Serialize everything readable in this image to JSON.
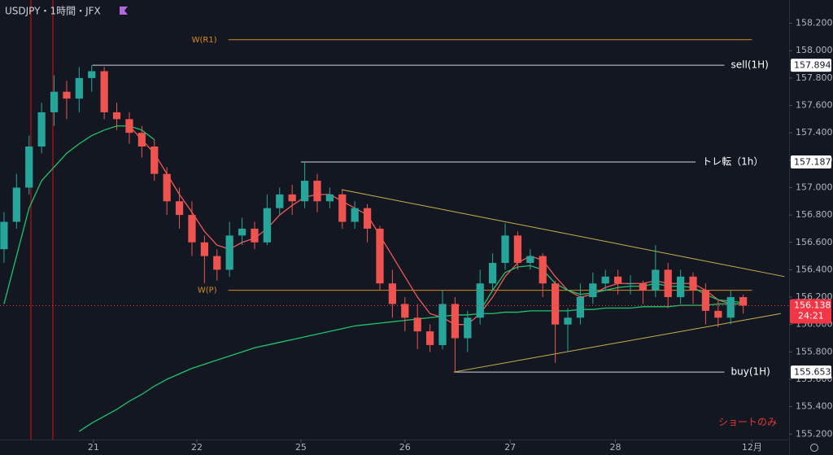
{
  "chart_data": {
    "type": "candlestick",
    "title": "USDJPY・1時間・JFX",
    "annotation": "ショートのみ",
    "x": [
      0,
      1,
      2,
      3,
      4,
      5,
      6,
      7,
      8,
      9,
      10,
      11,
      12,
      13,
      14,
      15,
      16,
      17,
      18,
      19,
      20,
      21,
      22,
      23,
      24,
      25,
      26,
      27,
      28,
      29,
      30,
      31,
      32,
      33,
      34,
      35,
      36,
      37,
      38,
      39,
      40,
      41,
      42,
      43,
      44,
      45,
      46,
      47,
      48,
      49,
      50,
      51,
      52,
      53,
      54,
      55,
      56,
      57,
      58,
      59
    ],
    "open": [
      156.55,
      156.75,
      157.0,
      157.3,
      157.55,
      157.7,
      157.65,
      157.8,
      157.85,
      157.55,
      157.5,
      157.4,
      157.3,
      157.1,
      156.9,
      156.8,
      156.6,
      156.5,
      156.4,
      156.65,
      156.7,
      156.6,
      156.85,
      156.95,
      156.9,
      157.05,
      156.9,
      156.95,
      156.75,
      156.85,
      156.7,
      156.3,
      156.15,
      156.05,
      155.95,
      155.85,
      156.15,
      155.9,
      156.05,
      156.3,
      156.45,
      156.65,
      156.45,
      156.5,
      156.3,
      156.0,
      156.05,
      156.2,
      156.3,
      156.35,
      156.3,
      156.3,
      156.25,
      156.4,
      156.2,
      156.35,
      156.25,
      156.1,
      156.05,
      156.2
    ],
    "high": [
      156.82,
      157.1,
      157.38,
      157.62,
      157.82,
      157.78,
      157.88,
      157.894,
      157.88,
      157.62,
      157.55,
      157.45,
      157.35,
      157.15,
      157.0,
      156.9,
      156.65,
      156.55,
      156.75,
      156.78,
      156.75,
      156.95,
      157.0,
      157.02,
      157.187,
      157.1,
      157.0,
      156.98,
      156.9,
      156.88,
      156.72,
      156.4,
      156.2,
      156.15,
      156.0,
      156.25,
      156.2,
      156.1,
      156.4,
      156.52,
      156.74,
      156.68,
      156.55,
      156.52,
      156.32,
      156.12,
      156.3,
      156.38,
      156.4,
      156.4,
      156.36,
      156.32,
      156.58,
      156.45,
      156.4,
      156.38,
      156.3,
      156.18,
      156.25,
      156.22
    ],
    "low": [
      156.45,
      156.7,
      156.95,
      157.25,
      157.45,
      157.5,
      157.55,
      157.7,
      157.5,
      157.42,
      157.32,
      157.22,
      157.05,
      156.8,
      156.7,
      156.5,
      156.3,
      156.32,
      156.35,
      156.58,
      156.55,
      156.58,
      156.8,
      156.8,
      156.85,
      156.82,
      156.85,
      156.7,
      156.7,
      156.6,
      156.25,
      156.05,
      155.95,
      155.82,
      155.8,
      155.82,
      155.653,
      155.8,
      156.0,
      156.25,
      156.4,
      156.4,
      156.4,
      156.2,
      155.72,
      155.8,
      156.0,
      156.15,
      156.25,
      156.22,
      156.22,
      156.15,
      156.2,
      156.12,
      156.15,
      156.15,
      156.0,
      155.98,
      156.0,
      156.08
    ],
    "close": [
      156.75,
      157.0,
      157.3,
      157.55,
      157.7,
      157.65,
      157.8,
      157.85,
      157.55,
      157.5,
      157.4,
      157.3,
      157.1,
      156.9,
      156.8,
      156.6,
      156.5,
      156.4,
      156.65,
      156.7,
      156.6,
      156.85,
      156.95,
      156.9,
      157.05,
      156.9,
      156.95,
      156.75,
      156.85,
      156.7,
      156.3,
      156.15,
      156.05,
      155.95,
      155.85,
      156.15,
      155.9,
      156.05,
      156.3,
      156.45,
      156.65,
      156.45,
      156.5,
      156.3,
      156.0,
      156.05,
      156.2,
      156.3,
      156.35,
      156.3,
      156.3,
      156.25,
      156.4,
      156.2,
      156.35,
      156.25,
      156.1,
      156.05,
      156.2,
      156.138
    ],
    "up_color": "#26a69a",
    "down_color": "#ef5350",
    "lines": [
      {
        "color": "#f05a5a",
        "values": [
          null,
          null,
          null,
          null,
          null,
          null,
          null,
          null,
          null,
          null,
          157.45,
          157.35,
          157.25,
          157.1,
          156.95,
          156.82,
          156.68,
          156.58,
          156.55,
          156.6,
          156.63,
          156.7,
          156.8,
          156.87,
          156.93,
          156.95,
          156.95,
          156.9,
          156.85,
          156.8,
          156.65,
          156.5,
          156.35,
          156.2,
          156.08,
          156.05,
          156.0,
          156.0,
          156.08,
          156.2,
          156.35,
          156.45,
          156.5,
          156.47,
          156.35,
          156.25,
          156.2,
          156.22,
          156.27,
          156.3,
          156.3,
          156.3,
          156.32,
          156.3,
          156.3,
          156.3,
          156.25,
          156.18,
          156.15,
          156.15
        ]
      },
      {
        "color": "#1fc46a",
        "values": [
          156.15,
          156.5,
          156.85,
          157.05,
          157.15,
          157.25,
          157.32,
          157.38,
          157.42,
          157.45,
          157.45,
          157.42,
          157.35,
          null,
          null,
          null,
          null,
          null,
          null,
          null,
          null,
          null,
          null,
          null,
          null,
          null,
          null,
          null,
          null,
          null,
          null,
          null,
          null,
          null,
          null,
          null,
          null,
          null,
          156.1,
          156.25,
          156.38,
          156.42,
          156.43,
          156.4,
          156.3,
          156.25,
          156.22,
          156.23,
          156.25,
          156.27,
          156.28,
          156.28,
          156.3,
          156.28,
          156.28,
          156.27,
          156.22,
          156.18,
          156.17,
          156.16
        ]
      },
      {
        "color": "#1fc46a",
        "values": [
          null,
          null,
          null,
          null,
          null,
          null,
          155.22,
          155.28,
          155.33,
          155.38,
          155.44,
          155.49,
          155.55,
          155.6,
          155.64,
          155.68,
          155.71,
          155.74,
          155.77,
          155.8,
          155.83,
          155.85,
          155.87,
          155.89,
          155.91,
          155.93,
          155.95,
          155.97,
          155.99,
          156.0,
          156.01,
          156.02,
          156.03,
          156.04,
          156.05,
          156.06,
          156.07,
          156.07,
          156.08,
          156.08,
          156.09,
          156.09,
          156.1,
          156.1,
          156.1,
          156.1,
          156.11,
          156.11,
          156.12,
          156.12,
          156.12,
          156.13,
          156.13,
          156.13,
          156.14,
          156.14,
          156.14,
          156.15,
          156.15,
          156.15
        ]
      }
    ],
    "levels": [
      {
        "label": "W(R1)",
        "value": 158.08,
        "start": 17.9,
        "end": 59.7,
        "color": "#d98b1e",
        "label_side": "left"
      },
      {
        "label": "sell(1H)",
        "value": 157.894,
        "value_label": "157.894",
        "start": 7.05,
        "end": 57.5,
        "color": "#d1d4dc",
        "label_side": "right"
      },
      {
        "label": "トレ転（1h）",
        "value": 157.187,
        "value_label": "157.187",
        "start": 23.7,
        "end": 55.2,
        "color": "#d1d4dc",
        "label_side": "right"
      },
      {
        "label": "W(P)",
        "value": 156.25,
        "start": 17.9,
        "end": 59.7,
        "color": "#d98b1e",
        "label_side": "left"
      },
      {
        "label": "buy(1H)",
        "value": 155.653,
        "value_label": "155.653",
        "start": 35.9,
        "end": 57.5,
        "color": "#d1d4dc",
        "label_side": "right"
      }
    ],
    "trendlines": [
      {
        "color": "#c9b24a",
        "x": [
          26.95,
          62.3
        ],
        "y": [
          156.985,
          156.35
        ]
      },
      {
        "color": "#c9b24a",
        "x": [
          35.9,
          62.0
        ],
        "y": [
          155.653,
          156.08
        ]
      }
    ],
    "price_tag": {
      "value": 156.138,
      "label": "156.138",
      "countdown": "24:21",
      "color": "#f23645"
    },
    "xlim": [
      -0.32,
      62.66
    ],
    "ylim": [
      155.16,
      158.37
    ],
    "xticks": [
      {
        "value": 7.14,
        "label": "21"
      },
      {
        "value": 15.39,
        "label": "22"
      },
      {
        "value": 23.7,
        "label": "25"
      },
      {
        "value": 32.0,
        "label": "26"
      },
      {
        "value": 40.4,
        "label": "27"
      },
      {
        "value": 48.8,
        "label": "28"
      },
      {
        "value": 59.7,
        "label": "12月"
      }
    ],
    "yticks": [
      {
        "value": 155.2,
        "label": "155.200"
      },
      {
        "value": 155.4,
        "label": "155.400"
      },
      {
        "value": 155.6,
        "label": "155.600"
      },
      {
        "value": 155.8,
        "label": "155.800"
      },
      {
        "value": 156.0,
        "label": "156.000"
      },
      {
        "value": 156.2,
        "label": "156.200"
      },
      {
        "value": 156.4,
        "label": "156.400"
      },
      {
        "value": 156.6,
        "label": "156.600"
      },
      {
        "value": 156.8,
        "label": "156.800"
      },
      {
        "value": 157.0,
        "label": "157.000"
      },
      {
        "value": 157.2,
        "label": "157.200"
      },
      {
        "value": 157.4,
        "label": "157.400"
      },
      {
        "value": 157.6,
        "label": "157.600"
      },
      {
        "value": 157.8,
        "label": "157.800"
      },
      {
        "value": 158.0,
        "label": "158.000"
      },
      {
        "value": 158.2,
        "label": "158.200"
      }
    ],
    "grid": false
  }
}
